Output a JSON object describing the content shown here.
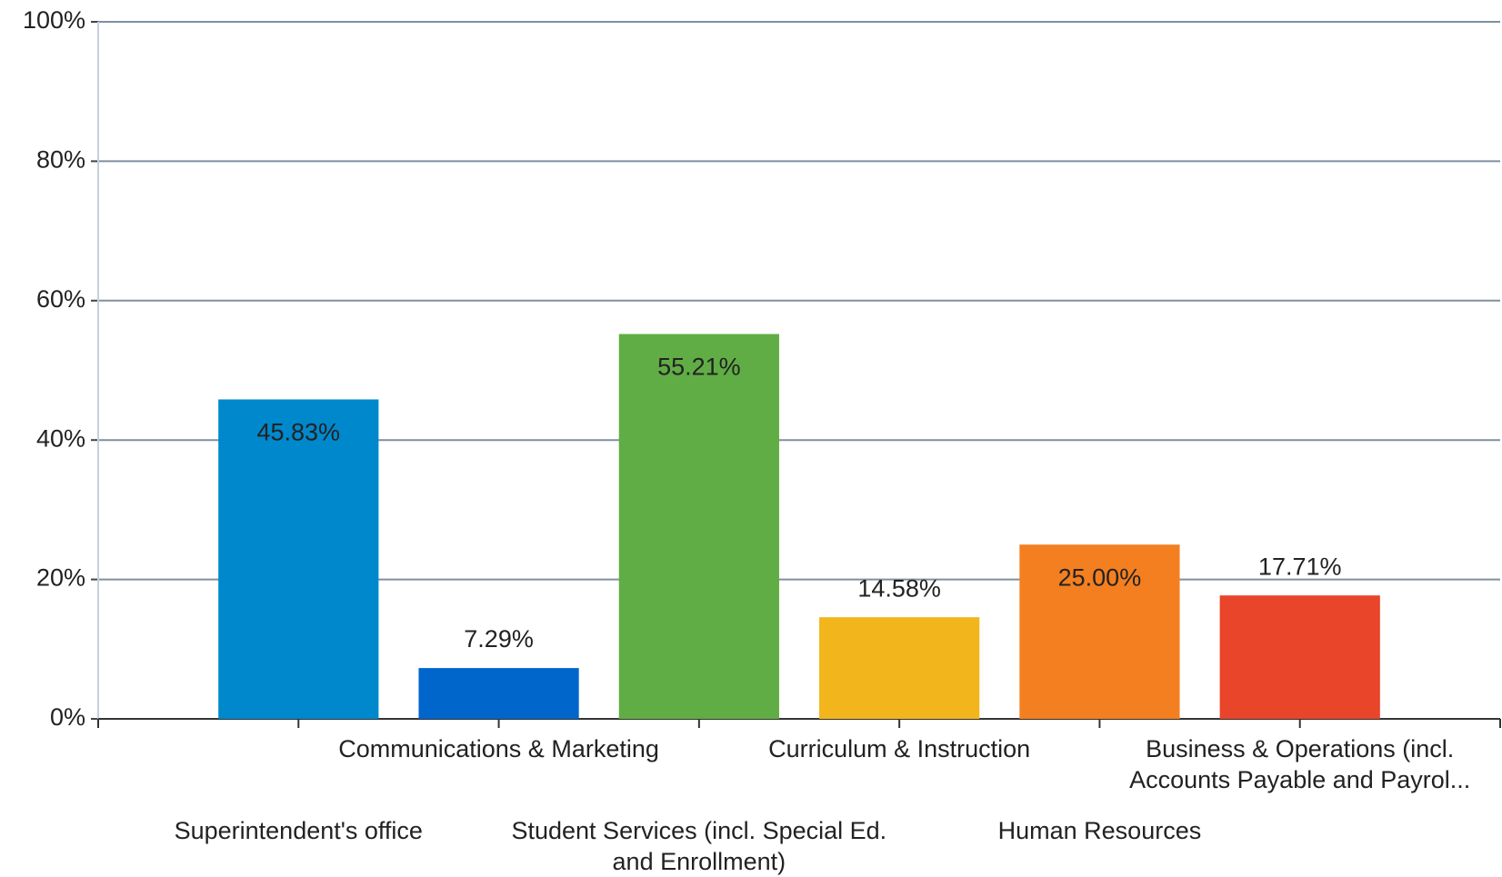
{
  "chart_data": {
    "type": "bar",
    "categories": [
      "Superintendent's office",
      "Communications & Marketing",
      "Student Services (incl. Special Ed. and Enrollment)",
      "Curriculum & Instruction",
      "Human Resources",
      "Business & Operations (incl. Accounts Payable and Payrol..."
    ],
    "values": [
      45.83,
      7.29,
      55.21,
      14.58,
      25.0,
      17.71
    ],
    "value_labels": [
      "45.83%",
      "7.29%",
      "55.21%",
      "14.58%",
      "25.00%",
      "17.71%"
    ],
    "colors": [
      "#0088cc",
      "#0066cc",
      "#61ad45",
      "#f2b51c",
      "#f47f20",
      "#e8452a"
    ],
    "ylim": [
      0,
      100
    ],
    "yticks": [
      {
        "value": 0,
        "label": "0%"
      },
      {
        "value": 20,
        "label": "20%"
      },
      {
        "value": 40,
        "label": "40%"
      },
      {
        "value": 60,
        "label": "60%"
      },
      {
        "value": 80,
        "label": "80%"
      },
      {
        "value": 100,
        "label": "100%"
      }
    ],
    "grid": true
  }
}
